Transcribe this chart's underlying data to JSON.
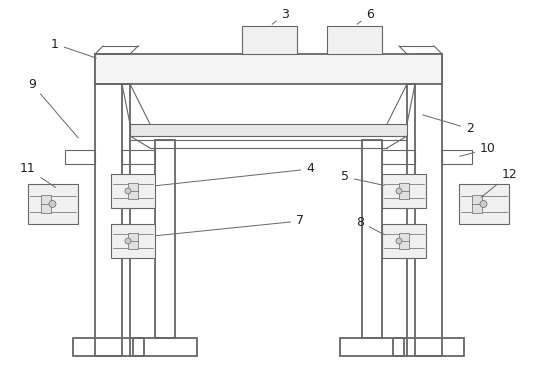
{
  "bg_color": "#ffffff",
  "lc": "#666666",
  "lw_main": 1.3,
  "lw_thin": 0.8,
  "figsize": [
    5.37,
    3.84
  ],
  "dpi": 100,
  "label_fs": 9,
  "label_color": "#222222"
}
